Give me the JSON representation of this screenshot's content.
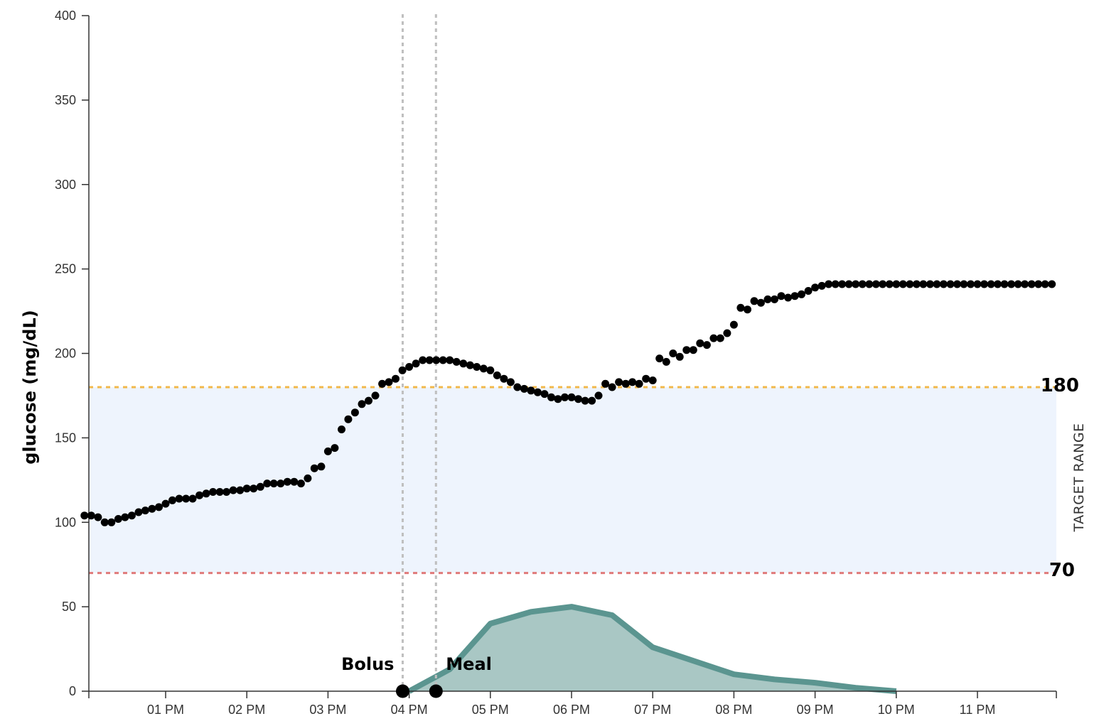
{
  "chart_data": {
    "type": "scatter",
    "ylabel": "glucose (mg/dL)",
    "ylim": [
      0,
      400
    ],
    "y_ticks": [
      "0",
      "50",
      "100",
      "150",
      "200",
      "250",
      "300",
      "350",
      "400"
    ],
    "x_tick_labels": [
      "01 PM",
      "02 PM",
      "03 PM",
      "04 PM",
      "05 PM",
      "06 PM",
      "07 PM",
      "08 PM",
      "09 PM",
      "10 PM",
      "11 PM"
    ],
    "x_ticks_hours": [
      13,
      14,
      15,
      16,
      17,
      18,
      19,
      20,
      21,
      22,
      23
    ],
    "xlim_hours": [
      12.05,
      23.95
    ],
    "target_range": {
      "label": "TARGET RANGE",
      "low": 70,
      "high": 180,
      "low_label": "70",
      "high_label": "180",
      "fill_color": "#eef4fd",
      "low_color": "#e07a7a",
      "high_color": "#f2b84b"
    },
    "events": [
      {
        "label": "Bolus",
        "time_hours": 15.92,
        "value": 0
      },
      {
        "label": "Meal",
        "time_hours": 16.33,
        "value": 0
      }
    ],
    "glucose_series": {
      "color": "#000000",
      "times_hours": [
        12.0,
        12.083,
        12.167,
        12.25,
        12.333,
        12.417,
        12.5,
        12.583,
        12.667,
        12.75,
        12.833,
        12.917,
        13.0,
        13.083,
        13.167,
        13.25,
        13.333,
        13.417,
        13.5,
        13.583,
        13.667,
        13.75,
        13.833,
        13.917,
        14.0,
        14.083,
        14.167,
        14.25,
        14.333,
        14.417,
        14.5,
        14.583,
        14.667,
        14.75,
        14.833,
        14.917,
        15.0,
        15.083,
        15.167,
        15.25,
        15.333,
        15.417,
        15.5,
        15.583,
        15.667,
        15.75,
        15.833,
        15.917,
        16.0,
        16.083,
        16.167,
        16.25,
        16.333,
        16.417,
        16.5,
        16.583,
        16.667,
        16.75,
        16.833,
        16.917,
        17.0,
        17.083,
        17.167,
        17.25,
        17.333,
        17.417,
        17.5,
        17.583,
        17.667,
        17.75,
        17.833,
        17.917,
        18.0,
        18.083,
        18.167,
        18.25,
        18.333,
        18.417,
        18.5,
        18.583,
        18.667,
        18.75,
        18.833,
        18.917,
        19.0,
        19.083,
        19.167,
        19.25,
        19.333,
        19.417,
        19.5,
        19.583,
        19.667,
        19.75,
        19.833,
        19.917,
        20.0,
        20.083,
        20.167,
        20.25,
        20.333,
        20.417,
        20.5,
        20.583,
        20.667,
        20.75,
        20.833,
        20.917,
        21.0,
        21.083,
        21.167,
        21.25,
        21.333,
        21.417,
        21.5,
        21.583,
        21.667,
        21.75,
        21.833,
        21.917,
        22.0,
        22.083,
        22.167,
        22.25,
        22.333,
        22.417,
        22.5,
        22.583,
        22.667,
        22.75,
        22.833,
        22.917,
        23.0,
        23.083,
        23.167,
        23.25,
        23.333,
        23.417,
        23.5,
        23.583,
        23.667,
        23.75,
        23.833,
        23.917
      ],
      "values": [
        104,
        104,
        103,
        100,
        100,
        102,
        103,
        104,
        106,
        107,
        108,
        109,
        111,
        113,
        114,
        114,
        114,
        116,
        117,
        118,
        118,
        118,
        119,
        119,
        120,
        120,
        121,
        123,
        123,
        123,
        124,
        124,
        123,
        126,
        132,
        133,
        142,
        144,
        155,
        161,
        165,
        170,
        172,
        175,
        182,
        183,
        185,
        190,
        192,
        194,
        196,
        196,
        196,
        196,
        196,
        195,
        194,
        193,
        192,
        191,
        190,
        187,
        185,
        183,
        180,
        179,
        178,
        177,
        176,
        174,
        173,
        174,
        174,
        173,
        172,
        172,
        175,
        182,
        180,
        183,
        182,
        183,
        182,
        185,
        184,
        197,
        195,
        200,
        198,
        202,
        202,
        206,
        205,
        209,
        209,
        212,
        217,
        227,
        226,
        231,
        230,
        232,
        232,
        234,
        233,
        234,
        235,
        237,
        239,
        240,
        241,
        241,
        241,
        241,
        241,
        241,
        241,
        241,
        241,
        241,
        241,
        241,
        241,
        241,
        241,
        241,
        241,
        241,
        241,
        241,
        241,
        241,
        241,
        241,
        241,
        241,
        241,
        241,
        241,
        241,
        241,
        241,
        241,
        241
      ]
    },
    "activity_series": {
      "color": "#5b9590",
      "fill_color": "#a9c7c4",
      "times_hours": [
        16.0,
        16.5,
        17.0,
        17.5,
        18.0,
        18.5,
        19.0,
        19.5,
        20.0,
        20.5,
        21.0,
        21.5,
        22.0
      ],
      "values": [
        0,
        13,
        40,
        47,
        50,
        45,
        26,
        18,
        10,
        7,
        5,
        2,
        0
      ]
    }
  }
}
